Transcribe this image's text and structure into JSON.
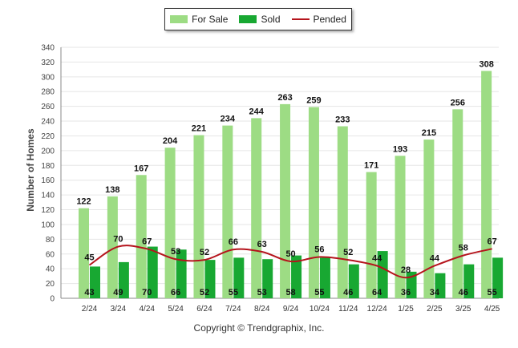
{
  "legend": {
    "for_sale": "For Sale",
    "sold": "Sold",
    "pended": "Pended"
  },
  "copyright": "Copyright © Trendgraphix, Inc.",
  "colors": {
    "for_sale": "#9ddc84",
    "sold": "#18a832",
    "pended": "#b5141c",
    "grid": "#e6e6e6",
    "axis": "#888888"
  },
  "chart_data": {
    "type": "bar",
    "title": "",
    "xlabel": "",
    "ylabel": "Number of Homes",
    "ylim": [
      0,
      340
    ],
    "yticks": [
      0,
      20,
      40,
      60,
      80,
      100,
      120,
      140,
      160,
      180,
      200,
      220,
      240,
      260,
      280,
      300,
      320,
      340
    ],
    "grid": true,
    "legend_position": "top-center",
    "categories": [
      "2/24",
      "3/24",
      "4/24",
      "5/24",
      "6/24",
      "7/24",
      "8/24",
      "9/24",
      "10/24",
      "11/24",
      "12/24",
      "1/25",
      "2/25",
      "3/25",
      "4/25"
    ],
    "series": [
      {
        "name": "For Sale",
        "type": "bar",
        "values": [
          122,
          138,
          167,
          204,
          221,
          234,
          244,
          263,
          259,
          233,
          171,
          193,
          215,
          256,
          308
        ]
      },
      {
        "name": "Sold",
        "type": "bar",
        "values": [
          43,
          49,
          70,
          66,
          52,
          55,
          53,
          58,
          55,
          46,
          64,
          36,
          34,
          46,
          55
        ]
      },
      {
        "name": "Pended",
        "type": "line",
        "values": [
          45,
          70,
          67,
          53,
          52,
          66,
          63,
          50,
          56,
          52,
          44,
          28,
          44,
          58,
          67
        ]
      }
    ]
  }
}
